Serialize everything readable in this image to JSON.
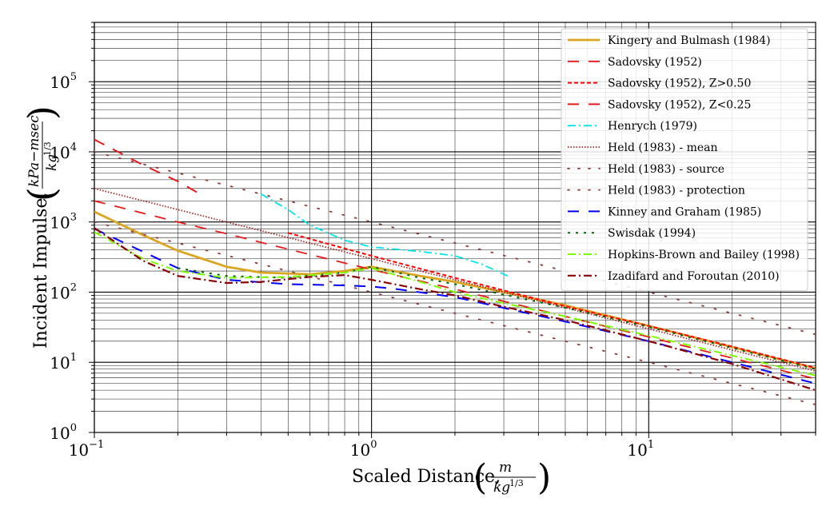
{
  "chart_data": {
    "type": "line",
    "x_scale": "log",
    "y_scale": "log",
    "xlim": [
      0.1,
      40
    ],
    "ylim": [
      1,
      700000
    ],
    "grid": true,
    "legend_placement": "top-right",
    "xlabel": "Scaled Distance,",
    "xlabel_unit_num": "m",
    "xlabel_unit_den": "kg",
    "xlabel_unit_den_exp": "1/3",
    "ylabel": "Incident Impulse,",
    "ylabel_unit_num": "kPa−msec",
    "ylabel_unit_den": "kg",
    "ylabel_unit_den_exp": "1/3",
    "x_ticks": [
      {
        "value": 0.1,
        "base": "10",
        "exp": "−1"
      },
      {
        "value": 1,
        "base": "10",
        "exp": "0"
      },
      {
        "value": 10,
        "base": "10",
        "exp": "1"
      }
    ],
    "y_ticks": [
      {
        "value": 1,
        "base": "10",
        "exp": "0"
      },
      {
        "value": 10,
        "base": "10",
        "exp": "1"
      },
      {
        "value": 100,
        "base": "10",
        "exp": "2"
      },
      {
        "value": 1000,
        "base": "10",
        "exp": "3"
      },
      {
        "value": 10000,
        "base": "10",
        "exp": "4"
      },
      {
        "value": 100000,
        "base": "10",
        "exp": "5"
      }
    ],
    "series": [
      {
        "name": "Kingery and Bulmash (1984)",
        "color": "#daa520",
        "style": "solid",
        "width": 2.8,
        "x": [
          0.1,
          0.15,
          0.2,
          0.3,
          0.4,
          0.6,
          0.8,
          1.0,
          1.5,
          2,
          3,
          5,
          10,
          20,
          40
        ],
        "y": [
          1400,
          650,
          390,
          230,
          190,
          180,
          200,
          230,
          170,
          140,
          100,
          65,
          33,
          16.5,
          8.2
        ]
      },
      {
        "name": "Sadovsky (1952)",
        "color": "#e41a1c",
        "style": "dash-long",
        "width": 1.8,
        "x": [
          0.1,
          0.2,
          0.3,
          0.5,
          1,
          2,
          5,
          10,
          20,
          40
        ],
        "y": [
          2000,
          1000,
          680,
          410,
          210,
          110,
          45,
          23,
          11.5,
          5.8
        ]
      },
      {
        "name": "Sadovsky (1952), Z>0.50",
        "color": "#ff0000",
        "style": "dash-short",
        "width": 2,
        "x": [
          0.5,
          1,
          2,
          5,
          10,
          20,
          40
        ],
        "y": [
          700,
          330,
          160,
          63,
          33,
          16.8,
          8.3
        ]
      },
      {
        "name": "Sadovsky (1952), Z<0.25",
        "color": "#e41a1c",
        "style": "dash-long",
        "width": 2,
        "x": [
          0.1,
          0.15,
          0.2,
          0.25
        ],
        "y": [
          15000,
          6500,
          3800,
          2300
        ]
      },
      {
        "name": "Henrych (1979)",
        "color": "#00e5ee",
        "style": "dashdot",
        "width": 1.8,
        "x": [
          0.4,
          0.5,
          0.6,
          0.8,
          1,
          1.5,
          2,
          2.5,
          3.1
        ],
        "y": [
          2500,
          1500,
          900,
          550,
          440,
          380,
          330,
          250,
          170
        ]
      },
      {
        "name": "Held (1983) - mean",
        "color": "#a52a2a",
        "style": "dotted",
        "width": 1.8,
        "x": [
          0.1,
          0.2,
          0.5,
          1,
          2,
          5,
          10,
          20,
          40
        ],
        "y": [
          3000,
          1500,
          600,
          300,
          150,
          60,
          30,
          15,
          7.5
        ]
      },
      {
        "name": "Held (1983) - source",
        "color": "#8b3a3a",
        "style": "sparse-dot",
        "width": 1.8,
        "x": [
          0.1,
          0.2,
          0.5,
          1,
          2,
          5,
          10,
          20,
          40
        ],
        "y": [
          10000,
          5000,
          2000,
          1000,
          500,
          200,
          100,
          50,
          25
        ]
      },
      {
        "name": "Held (1983) - protection",
        "color": "#8b3a3a",
        "style": "sparse-dot",
        "width": 1.8,
        "x": [
          0.1,
          0.2,
          0.5,
          1,
          2,
          5,
          10,
          20,
          40
        ],
        "y": [
          1000,
          500,
          200,
          100,
          50,
          20,
          10,
          5,
          2.5
        ]
      },
      {
        "name": "Kinney and Graham (1985)",
        "color": "#0000ff",
        "style": "dash-long",
        "width": 2,
        "x": [
          0.1,
          0.2,
          0.3,
          0.5,
          0.8,
          1,
          1.2,
          2,
          5,
          10,
          20,
          40
        ],
        "y": [
          800,
          220,
          150,
          130,
          125,
          120,
          112,
          85,
          38,
          20,
          10,
          5
        ]
      },
      {
        "name": "Swisdak (1994)",
        "color": "#006400",
        "style": "dash-dot-dense",
        "width": 2,
        "x": [
          0.2,
          0.3,
          0.5,
          0.8,
          1,
          1.5,
          2,
          5,
          10,
          20,
          40
        ],
        "y": [
          220,
          170,
          160,
          190,
          230,
          160,
          130,
          60,
          32,
          16,
          8
        ]
      },
      {
        "name": "Hopkins-Brown and Bailey (1998)",
        "color": "#7cfc00",
        "style": "dashdot",
        "width": 2,
        "x": [
          0.1,
          0.15,
          0.2,
          0.3,
          0.5,
          0.8,
          1,
          1.5,
          2,
          3,
          5,
          10,
          20,
          40
        ],
        "y": [
          720,
          300,
          200,
          160,
          165,
          190,
          220,
          140,
          100,
          70,
          45,
          24,
          12.5,
          6.5
        ]
      },
      {
        "name": "Izadifard and Foroutan (2010)",
        "color": "#8b0000",
        "style": "dashdot",
        "width": 2.2,
        "x": [
          0.1,
          0.15,
          0.2,
          0.3,
          0.4,
          0.6,
          0.8,
          1,
          1.5,
          2,
          3,
          5,
          10,
          20,
          40
        ],
        "y": [
          820,
          280,
          170,
          135,
          140,
          165,
          175,
          150,
          110,
          90,
          62,
          40,
          20,
          9.5,
          4
        ]
      }
    ]
  }
}
